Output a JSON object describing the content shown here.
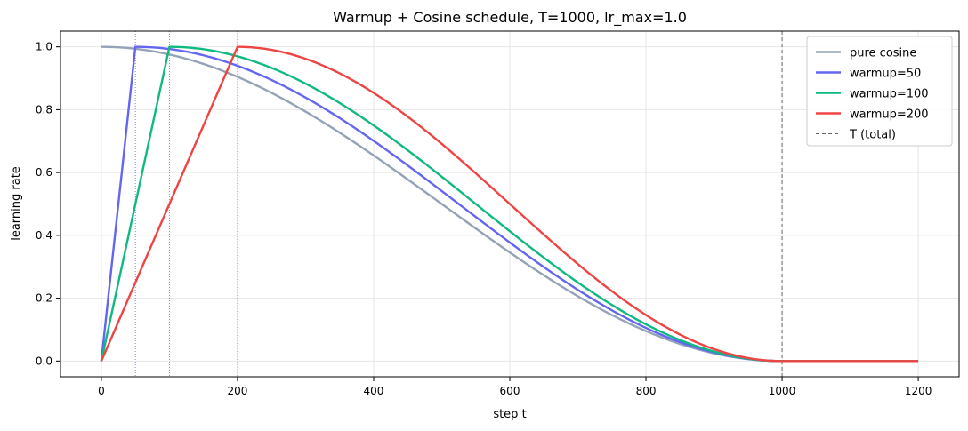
{
  "chart_data": {
    "type": "line",
    "title": "Warmup + Cosine schedule, T=1000, lr_max=1.0",
    "xlabel": "step t",
    "ylabel": "learning rate",
    "xlim": [
      -60,
      1260
    ],
    "ylim": [
      -0.05,
      1.05
    ],
    "x_ticks": [
      0,
      200,
      400,
      600,
      800,
      1000,
      1200
    ],
    "y_ticks": [
      0.0,
      0.2,
      0.4,
      0.6,
      0.8,
      1.0
    ],
    "x_tick_labels": [
      "0",
      "200",
      "400",
      "600",
      "800",
      "1000",
      "1200"
    ],
    "y_tick_labels": [
      "0.0",
      "0.2",
      "0.4",
      "0.6",
      "0.8",
      "1.0"
    ],
    "grid": true,
    "legend_position": "top-right",
    "T_total": 1000,
    "lr_max": 1.0,
    "x_max": 1200,
    "series": [
      {
        "name": "pure cosine",
        "warmup": 0,
        "color": "#94a3b8"
      },
      {
        "name": "warmup=50",
        "warmup": 50,
        "color": "#6366f1"
      },
      {
        "name": "warmup=100",
        "warmup": 100,
        "color": "#10b981"
      },
      {
        "name": "warmup=200",
        "warmup": 200,
        "color": "#ef4444"
      }
    ],
    "reference_lines": [
      {
        "name": "T (total)",
        "x": 1000,
        "color": "#666666",
        "style": "dashed",
        "in_legend": true
      },
      {
        "x": 50,
        "color": "#6366f1",
        "style": "dotted",
        "in_legend": false
      },
      {
        "x": 100,
        "color": "#10b981",
        "style": "dotted",
        "in_legend": false
      },
      {
        "x": 200,
        "color": "#ef4444",
        "style": "dotted",
        "in_legend": false
      }
    ]
  }
}
